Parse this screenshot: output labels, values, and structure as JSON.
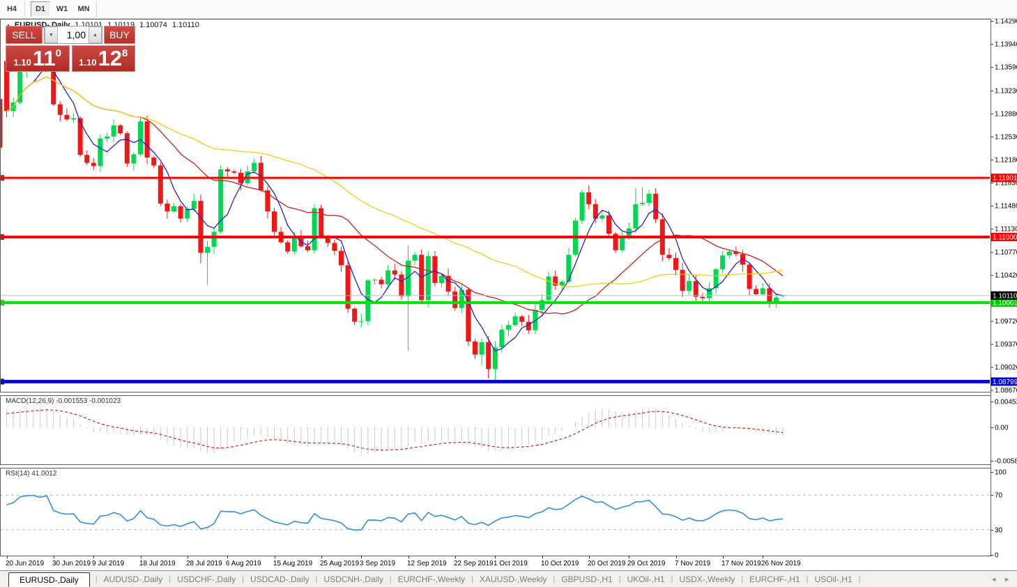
{
  "toolbar": {
    "items": [
      "H4",
      "D1",
      "W1",
      "MN"
    ],
    "active": "D1"
  },
  "chart_header": {
    "collapse_icon": "▲",
    "symbol_title": "EURUSD-,Daily",
    "open": "1.10101",
    "high": "1.10119",
    "low": "1.10074",
    "close": "1.10110"
  },
  "trade_widget": {
    "sell_label": "SELL",
    "buy_label": "BUY",
    "lot": "1,00",
    "down_icon": "▼",
    "up_icon": "▲",
    "sell_price": {
      "prefix": "1.10",
      "big": "11",
      "sup": "0"
    },
    "buy_price": {
      "prefix": "1.10",
      "big": "12",
      "sup": "8"
    }
  },
  "indicators": {
    "macd_label": "MACD(12,26,9) -0.001553 -0.001023",
    "rsi_label": "RSI(14) 41.0012"
  },
  "tabs": {
    "items": [
      "EURUSD-,Daily",
      "AUDUSD-,Daily",
      "USDCHF-,Daily",
      "USDCAD-,Daily",
      "USDCNH-,Daily",
      "EURCHF-,Weekly",
      "XAUUSD-,Weekly",
      "GBPUSD-,H1",
      "UKOil-,H1",
      "USDX-,Weekly",
      "EURCHF-,H1",
      "USOil-,H1"
    ],
    "active_index": 0,
    "separator": "|",
    "scroll_left_icon": "◄",
    "scroll_right_icon": "►"
  },
  "chart_data": {
    "type": "candlestick",
    "symbol": "EURUSD",
    "timeframe": "Daily",
    "colors": {
      "bull": "#00d94f",
      "bear": "#f21616",
      "ma_fast": "#2020cc",
      "ma_mid": "#cc2020",
      "ma_slow": "#efcf10",
      "macd_bar": "#c8c8c8",
      "macd_signal": "#d02020",
      "rsi_line": "#2e8fe8",
      "current_line": "#bbbbbb",
      "grid_dash": "#b8b8b8"
    },
    "pre_candle": {
      "o": 1.131,
      "h": 1.1316,
      "l": 1.1228,
      "c": 1.1236
    },
    "first_open": 1.1368,
    "closes": [
      1.1292,
      1.1305,
      1.1352,
      1.1362,
      1.1366,
      1.1358,
      1.1371,
      1.1302,
      1.1286,
      1.1279,
      1.1281,
      1.1225,
      1.1213,
      1.1208,
      1.125,
      1.1253,
      1.127,
      1.1258,
      1.1212,
      1.1226,
      1.1276,
      1.1221,
      1.1209,
      1.1151,
      1.1139,
      1.1147,
      1.1128,
      1.1143,
      1.1155,
      1.1076,
      1.1085,
      1.1108,
      1.1203,
      1.12,
      1.1198,
      1.1182,
      1.12,
      1.1213,
      1.1171,
      1.1139,
      1.1108,
      1.1092,
      1.1078,
      1.11,
      1.1086,
      1.108,
      1.1144,
      1.1101,
      1.1091,
      1.1079,
      1.1057,
      1.0991,
      1.0971,
      1.0972,
      1.1034,
      1.1035,
      1.1028,
      1.1049,
      1.1043,
      1.101,
      1.1064,
      1.1073,
      1.1004,
      1.1071,
      1.103,
      1.1041,
      1.1017,
      1.0992,
      1.102,
      1.0941,
      1.0921,
      1.094,
      1.0899,
      1.0932,
      1.0959,
      1.0966,
      1.0979,
      1.0971,
      1.0958,
      1.0989,
      1.1004,
      1.104,
      1.1026,
      1.1032,
      1.1073,
      1.1125,
      1.1168,
      1.115,
      1.1128,
      1.1133,
      1.1105,
      1.108,
      1.11,
      1.1113,
      1.115,
      1.1152,
      1.1166,
      1.1127,
      1.1073,
      1.1068,
      1.105,
      1.1018,
      1.1033,
      1.1009,
      1.1007,
      1.1022,
      1.1051,
      1.1072,
      1.1078,
      1.1074,
      1.1058,
      1.1021,
      1.1013,
      1.1022,
      1.1001,
      1.1008,
      1.1011
    ],
    "wick_overrides": {
      "0": {
        "h": 1.1372,
        "l": 1.1282
      },
      "3": {
        "h": 1.1374
      },
      "6": {
        "h": 1.1378
      },
      "29": {
        "l": 1.106
      },
      "30": {
        "l": 1.1027
      },
      "60": {
        "h": 1.1087,
        "l": 1.0927
      },
      "71": {
        "l": 1.0905
      },
      "72": {
        "l": 1.0885
      },
      "73": {
        "l": 1.0879
      },
      "86": {
        "h": 1.1172
      },
      "87": {
        "h": 1.1179
      },
      "94": {
        "h": 1.1175
      },
      "95": {
        "h": 1.1176
      },
      "96": {
        "h": 1.1172
      },
      "116": {
        "o": 1.10101,
        "h": 1.10119,
        "l": 1.10074,
        "c": 1.1011
      }
    },
    "moving_averages": [
      {
        "period": 5,
        "color": "#2020cc"
      },
      {
        "period": 20,
        "color": "#cc2020"
      },
      {
        "period": 45,
        "color": "#efcf10"
      }
    ],
    "hlines": [
      {
        "price": 1.11901,
        "label": "1.11901",
        "color": "#ff0000",
        "width": 3,
        "label_bg": "#ff0000"
      },
      {
        "price": 1.11,
        "label": "1.11000",
        "color": "#ff0000",
        "width": 4,
        "label_bg": "#ff0000"
      },
      {
        "price": 1.10001,
        "label": "1.10001",
        "color": "#00e400",
        "width": 4,
        "label_bg": "#00cc00"
      },
      {
        "price": 1.08799,
        "label": "1.08799",
        "color": "#0000ee",
        "width": 5,
        "label_bg": "#0000ee"
      }
    ],
    "current_price": {
      "price": 1.1011,
      "label": "1.10110",
      "label_bg": "#000000"
    },
    "price_axis": [
      1.1429,
      1.1394,
      1.1359,
      1.1323,
      1.1288,
      1.1253,
      1.1218,
      1.1183,
      1.1148,
      1.1113,
      1.1077,
      1.1042,
      1.0972,
      1.0937,
      1.0902,
      1.0867
    ],
    "time_axis": [
      {
        "i": 0,
        "label": "20 Jun 2019"
      },
      {
        "i": 7,
        "label": "30 Jun 2019"
      },
      {
        "i": 13,
        "label": "9 Jul 2019"
      },
      {
        "i": 20,
        "label": "18 Jul 2019"
      },
      {
        "i": 27,
        "label": "28 Jul 2019"
      },
      {
        "i": 33,
        "label": "6 Aug 2019"
      },
      {
        "i": 40,
        "label": "15 Aug 2019"
      },
      {
        "i": 47,
        "label": "25 Aug 2019"
      },
      {
        "i": 53,
        "label": "3 Sep 2019"
      },
      {
        "i": 60,
        "label": "12 Sep 2019"
      },
      {
        "i": 67,
        "label": "22 Sep 2019"
      },
      {
        "i": 73,
        "label": "1 Oct 2019"
      },
      {
        "i": 80,
        "label": "10 Oct 2019"
      },
      {
        "i": 87,
        "label": "20 Oct 2019"
      },
      {
        "i": 93,
        "label": "29 Oct 2019"
      },
      {
        "i": 100,
        "label": "7 Nov 2019"
      },
      {
        "i": 107,
        "label": "17 Nov 2019"
      },
      {
        "i": 113,
        "label": "26 Nov 2019"
      }
    ],
    "macd": {
      "fast": 12,
      "slow": 26,
      "signal": 9,
      "current": -0.001553,
      "current_signal": -0.001023,
      "seed_fast": 1.1312,
      "seed_slow": 1.1275,
      "seed_signal": 0.0022,
      "axis_labels": [
        {
          "v": 0.004536,
          "t": "0.004536"
        },
        {
          "v": 0,
          "t": "0.00"
        },
        {
          "v": -0.00582,
          "t": "-0.005820"
        }
      ]
    },
    "rsi": {
      "period": 14,
      "current": 41.0012,
      "seed_gain": 0.001,
      "seed_loss": 0.0007,
      "levels": [
        70,
        30
      ],
      "axis_labels": [
        {
          "v": 100,
          "t": "100"
        },
        {
          "v": 70,
          "t": "70"
        },
        {
          "v": 30,
          "t": "30"
        },
        {
          "v": 0,
          "t": "0"
        }
      ]
    }
  }
}
